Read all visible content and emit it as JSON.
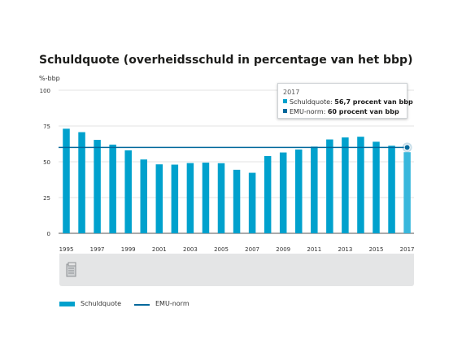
{
  "title": "Schuldquote (overheidsschuld in percentage van het bbp)",
  "unit_label": "%-bbp",
  "colors": {
    "bar": "#00a1cd",
    "bar_highlight": "#38b7dc",
    "norm": "#01689b",
    "grid": "#e3e3e3"
  },
  "tooltip": {
    "year": "2017",
    "row1_label": "Schuldquote:",
    "row1_value": "56,7 procent van bbp",
    "row2_label": "EMU-norm:",
    "row2_value": "60 procent van bbp"
  },
  "toolbar": {
    "icon": "document-icon"
  },
  "legend": [
    {
      "label": "Schuldquote",
      "kind": "bar"
    },
    {
      "label": "EMU-norm",
      "kind": "line"
    }
  ],
  "chart_data": {
    "type": "bar",
    "categories": [
      "1995",
      "1996",
      "1997",
      "1998",
      "1999",
      "2000",
      "2001",
      "2002",
      "2003",
      "2004",
      "2005",
      "2006",
      "2007",
      "2008",
      "2009",
      "2010",
      "2011",
      "2012",
      "2013",
      "2014",
      "2015",
      "2016",
      "2017"
    ],
    "series": [
      {
        "name": "Schuldquote",
        "values": [
          73.1,
          70.7,
          65.3,
          62.0,
          58.0,
          51.6,
          48.2,
          48.0,
          49.1,
          49.4,
          49.0,
          44.4,
          42.3,
          54.0,
          56.5,
          58.6,
          60.6,
          65.6,
          67.0,
          67.5,
          64.0,
          61.2,
          56.7
        ]
      },
      {
        "name": "EMU-norm",
        "type": "line",
        "values": [
          60,
          60,
          60,
          60,
          60,
          60,
          60,
          60,
          60,
          60,
          60,
          60,
          60,
          60,
          60,
          60,
          60,
          60,
          60,
          60,
          60,
          60,
          60
        ]
      }
    ],
    "x_tick_labels": [
      "1995",
      "1997",
      "1999",
      "2001",
      "2003",
      "2005",
      "2007",
      "2009",
      "2011",
      "2013",
      "2015",
      "2017"
    ],
    "y_ticks": [
      0,
      25,
      50,
      75,
      100
    ],
    "ylim": [
      0,
      100
    ],
    "ylabel": "%-bbp",
    "grid": true,
    "legend_position": "bottom-left",
    "highlight_category": "2017"
  }
}
